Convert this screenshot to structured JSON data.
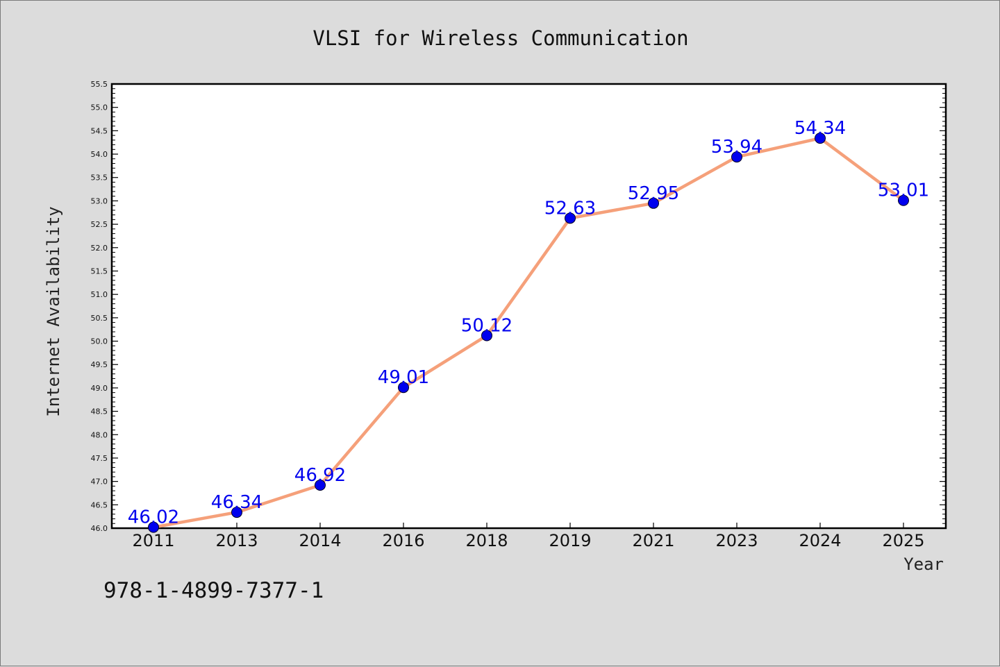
{
  "footnote": "978-1-4899-7377-1",
  "chart_data": {
    "type": "line",
    "title": "VLSI for Wireless Communication",
    "xlabel": "Year",
    "ylabel": "Internet Availability",
    "categories": [
      "2011",
      "2013",
      "2014",
      "2016",
      "2018",
      "2019",
      "2021",
      "2023",
      "2024",
      "2025"
    ],
    "series": [
      {
        "values": [
          46.02,
          46.34,
          46.92,
          49.01,
          50.12,
          52.63,
          52.95,
          53.94,
          54.34,
          53.01
        ],
        "labels": [
          "46.02",
          "46.34",
          "46.92",
          "49.01",
          "50.12",
          "52.63",
          "52.95",
          "53.94",
          "54.34",
          "53.01"
        ]
      }
    ],
    "ylim": [
      46.0,
      55.5
    ],
    "yticks": [
      "46.0",
      "46.5",
      "47.0",
      "47.5",
      "48.0",
      "48.5",
      "49.0",
      "49.5",
      "50.0",
      "50.5",
      "51.0",
      "51.5",
      "52.0",
      "52.5",
      "53.0",
      "53.5",
      "54.0",
      "54.5",
      "55.0",
      "55.5"
    ],
    "grid": false,
    "legend": "none",
    "colors": {
      "line": "#f5a07a",
      "marker": "#0000ee",
      "label": "#0000ee",
      "plot_bg": "#ffffff",
      "figure_bg": "#dcdcdc"
    }
  }
}
